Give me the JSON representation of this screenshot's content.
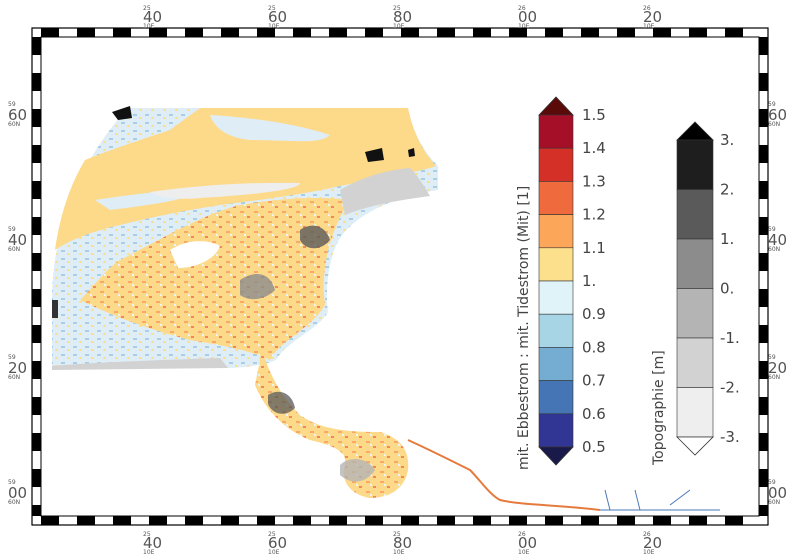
{
  "map": {
    "top_ticks": [
      {
        "label": "40",
        "sup": "25",
        "sub": "10E"
      },
      {
        "label": "60",
        "sup": "25",
        "sub": "10E"
      },
      {
        "label": "80",
        "sup": "25",
        "sub": "10E"
      },
      {
        "label": "00",
        "sup": "26",
        "sub": "10E"
      },
      {
        "label": "20",
        "sup": "26",
        "sub": "10E"
      }
    ],
    "side_ticks": [
      {
        "label": "60",
        "sup": "59",
        "sub": "60N"
      },
      {
        "label": "40",
        "sup": "59",
        "sub": "60N"
      },
      {
        "label": "20",
        "sup": "59",
        "sub": "60N"
      },
      {
        "label": "00",
        "sup": "59",
        "sub": "60N"
      }
    ]
  },
  "colorbar_ratio": {
    "title": "mit. Ebbestrom : mit. Tidestrom (Mit) [1]",
    "labels": [
      "1.5",
      "1.4",
      "1.3",
      "1.2",
      "1.1",
      "1.",
      "0.9",
      "0.8",
      "0.7",
      "0.6",
      "0.5"
    ],
    "colors": [
      "#a50f28",
      "#d53027",
      "#ef6a3c",
      "#fca65a",
      "#fde08c",
      "#e0f3f8",
      "#a8d5e5",
      "#74acd2",
      "#4575b4",
      "#313695"
    ],
    "over_color": "#5b0a0a",
    "under_color": "#1a1a4a"
  },
  "colorbar_topo": {
    "title": "Topographie [m]",
    "labels": [
      "3.",
      "2.",
      "1.",
      "0.",
      "-1.",
      "-2.",
      "-3."
    ],
    "colors": [
      "#1e1e1e",
      "#5a5a5a",
      "#8c8c8c",
      "#b4b4b4",
      "#d2d2d2",
      "#eeeeee"
    ],
    "over_color": "#000000",
    "under_color": "#ffffff"
  }
}
